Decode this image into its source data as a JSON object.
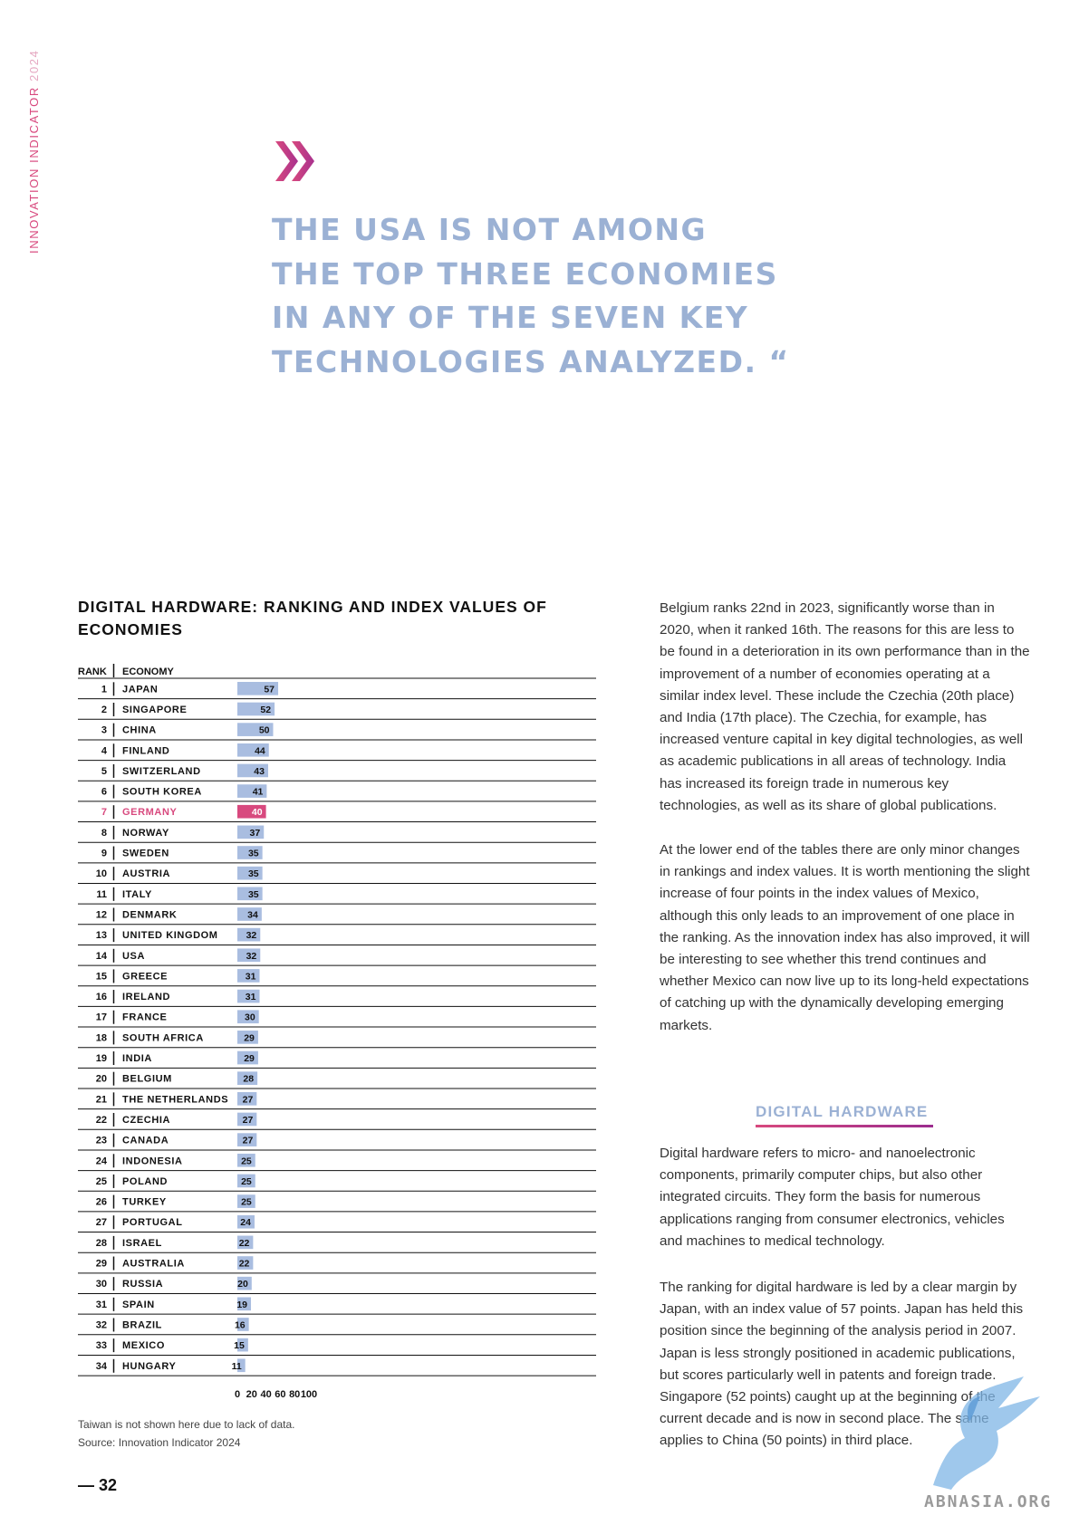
{
  "side_label": {
    "text": "INNOVATION INDICATOR",
    "year": "2024"
  },
  "quote": {
    "icon": "double-chevron-icon",
    "lines": [
      "THE USA IS NOT AMONG",
      "THE TOP THREE ECONOMIES",
      "IN ANY OF THE SEVEN KEY",
      "TECHNOLOGIES ANALYZED. “"
    ]
  },
  "chart_title": "DIGITAL HARDWARE: RANKING AND INDEX VALUES OF ECONOMIES",
  "chart_data": {
    "type": "bar",
    "orientation": "horizontal",
    "column_headers": {
      "rank": "RANK",
      "economy": "ECONOMY"
    },
    "ranks": [
      "1",
      "2",
      "3",
      "4",
      "5",
      "6",
      "7",
      "8",
      "9",
      "10",
      "11",
      "12",
      "13",
      "14",
      "15",
      "16",
      "17",
      "18",
      "19",
      "20",
      "21",
      "22",
      "23",
      "24",
      "25",
      "26",
      "27",
      "28",
      "29",
      "30",
      "31",
      "32",
      "33",
      "34"
    ],
    "categories": [
      "JAPAN",
      "SINGAPORE",
      "CHINA",
      "FINLAND",
      "SWITZERLAND",
      "SOUTH KOREA",
      "GERMANY",
      "NORWAY",
      "SWEDEN",
      "AUSTRIA",
      "ITALY",
      "DENMARK",
      "UNITED KINGDOM",
      "USA",
      "GREECE",
      "IRELAND",
      "FRANCE",
      "SOUTH AFRICA",
      "INDIA",
      "BELGIUM",
      "THE NETHERLANDS",
      "CZECHIA",
      "CANADA",
      "INDONESIA",
      "POLAND",
      "TURKEY",
      "PORTUGAL",
      "ISRAEL",
      "AUSTRALIA",
      "RUSSIA",
      "SPAIN",
      "BRAZIL",
      "MEXICO",
      "HUNGARY"
    ],
    "values": [
      57,
      52,
      50,
      44,
      43,
      41,
      40,
      37,
      35,
      35,
      35,
      34,
      32,
      32,
      31,
      31,
      30,
      29,
      29,
      28,
      27,
      27,
      27,
      25,
      25,
      25,
      24,
      22,
      22,
      20,
      19,
      16,
      15,
      11
    ],
    "highlight": "GERMANY",
    "xlim": [
      0,
      100
    ],
    "xticks": [
      "0",
      "20",
      "40",
      "60",
      "80",
      "100"
    ],
    "colors": {
      "bar": "#a9bde0",
      "highlight": "#d8497e",
      "highlight_text": "#d8497e"
    }
  },
  "footnote": {
    "note": "Taiwan is not shown here due to lack of data.",
    "source": "Source: Innovation Indicator 2024"
  },
  "page_number": "— 32",
  "body": {
    "p1": "Belgium ranks 22nd in 2023, significantly worse than in 2020, when it ranked 16th. The reasons for this are less to be found in a deterioration in its own performance than in the improvement of a number of economies operating at a similar index level. These include the Czechia (20th place) and India (17th place). The Czechia, for example, has increased venture capital in key digital technologies, as well as academic publications in all areas of technology. India has increased its foreign trade in numerous key technologies, as well as its share of global publications.",
    "p2": "At the lower end of the tables there are only minor changes in rankings and index values. It is worth mentioning the slight increase of four points in the index values of Mexico, although this only leads to an improvement of one place in the ranking. As the innovation index has also improved, it will be interesting to see whether this trend continues and whether Mexico can now live up to its long-held expectations of catching up with the dynamically developing emerging markets.",
    "section_heading": "DIGITAL HARDWARE",
    "p3": "Digital hardware refers to micro- and nanoelectronic components, primarily computer chips, but also other integrated circuits. They form the basis for numerous applications ranging from consumer electronics, vehicles and machines to medical technology.",
    "p4": "The ranking for digital hardware is led by a clear margin by Japan, with an index value of 57 points. Japan has held this position since the beginning of the analysis period in 2007. Japan is less strongly positioned in academic publications, but scores particularly well in patents and foreign trade. Singapore (52 points) caught up at the beginning of the current decade and is now in second place. The same applies to China (50 points) in third place."
  },
  "watermark": {
    "text": "ABNASIA.ORG",
    "icon": "griffin-icon"
  }
}
